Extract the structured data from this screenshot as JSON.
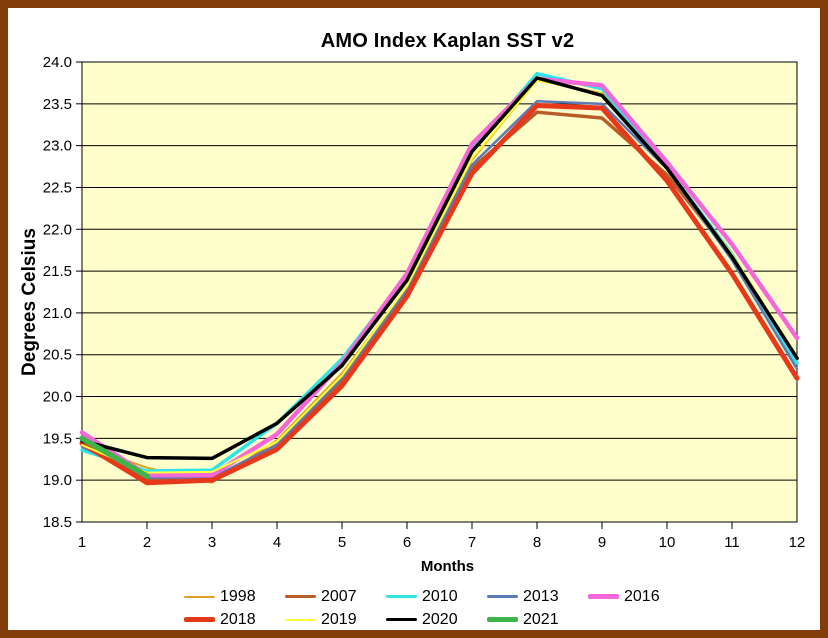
{
  "window": {
    "border_color": "#833D0B",
    "background": "#FFFFFF",
    "plot_background": "#FFFFCC",
    "gridline_color": "#000000"
  },
  "chart_data": {
    "type": "line",
    "title": "AMO Index Kaplan SST v2",
    "xlabel": "Months",
    "ylabel": "Degrees Celsius",
    "x": [
      1,
      2,
      3,
      4,
      5,
      6,
      7,
      8,
      9,
      10,
      11,
      12
    ],
    "xlim": [
      1,
      12
    ],
    "ylim": [
      18.5,
      24.0
    ],
    "ytick_step": 0.5,
    "y_tick_labels": [
      "24.0",
      "23.5",
      "23.0",
      "22.5",
      "22.0",
      "21.5",
      "21.0",
      "20.5",
      "20.0",
      "19.5",
      "19.0",
      "18.5"
    ],
    "grid": "horizontal-only",
    "legend_position": "bottom",
    "series": [
      {
        "name": "1998",
        "color": "#E2A221",
        "width": 2,
        "values": [
          19.42,
          19.15,
          18.97,
          19.48,
          20.28,
          21.3,
          22.83,
          23.78,
          23.63,
          22.72,
          21.7,
          20.47
        ]
      },
      {
        "name": "2007",
        "color": "#B85C28",
        "width": 3.5,
        "values": [
          19.43,
          19.0,
          19.02,
          19.42,
          20.2,
          21.24,
          22.73,
          23.4,
          23.33,
          22.65,
          21.68,
          20.45
        ]
      },
      {
        "name": "2010",
        "color": "#2EE4E8",
        "width": 3.5,
        "values": [
          19.36,
          19.11,
          19.12,
          19.68,
          20.45,
          21.45,
          22.95,
          23.86,
          23.68,
          22.73,
          21.7,
          20.4
        ]
      },
      {
        "name": "2013",
        "color": "#5B7AB8",
        "width": 2.5,
        "values": [
          19.4,
          19.03,
          19.03,
          19.42,
          20.22,
          21.28,
          22.77,
          23.53,
          23.5,
          22.72,
          21.63,
          20.33
        ]
      },
      {
        "name": "2016",
        "color": "#F567D8",
        "width": 4.5,
        "values": [
          19.57,
          19.06,
          19.06,
          19.55,
          20.4,
          21.47,
          23.02,
          23.8,
          23.72,
          22.8,
          21.82,
          20.7
        ]
      },
      {
        "name": "2018",
        "color": "#E8381A",
        "width": 5,
        "values": [
          19.44,
          18.97,
          19.0,
          19.37,
          20.13,
          21.2,
          22.67,
          23.48,
          23.45,
          22.58,
          21.47,
          20.22
        ]
      },
      {
        "name": "2019",
        "color": "#FFFF33",
        "width": 2,
        "values": [
          19.42,
          19.09,
          19.1,
          19.46,
          20.25,
          21.32,
          22.85,
          23.78,
          23.62,
          22.71,
          21.7,
          20.48
        ]
      },
      {
        "name": "2020",
        "color": "#000000",
        "width": 3.5,
        "values": [
          19.47,
          19.27,
          19.26,
          19.68,
          20.37,
          21.39,
          22.93,
          23.81,
          23.6,
          22.73,
          21.67,
          20.46
        ]
      },
      {
        "name": "2021",
        "color": "#3DB54A",
        "width": 5.5,
        "values": [
          19.5,
          19.05,
          null,
          null,
          null,
          null,
          null,
          null,
          null,
          null,
          null,
          null
        ]
      }
    ],
    "legend_rows": [
      [
        "1998",
        "2007",
        "2010",
        "2013",
        "2016"
      ],
      [
        "2018",
        "2019",
        "2020",
        "2021"
      ]
    ]
  }
}
